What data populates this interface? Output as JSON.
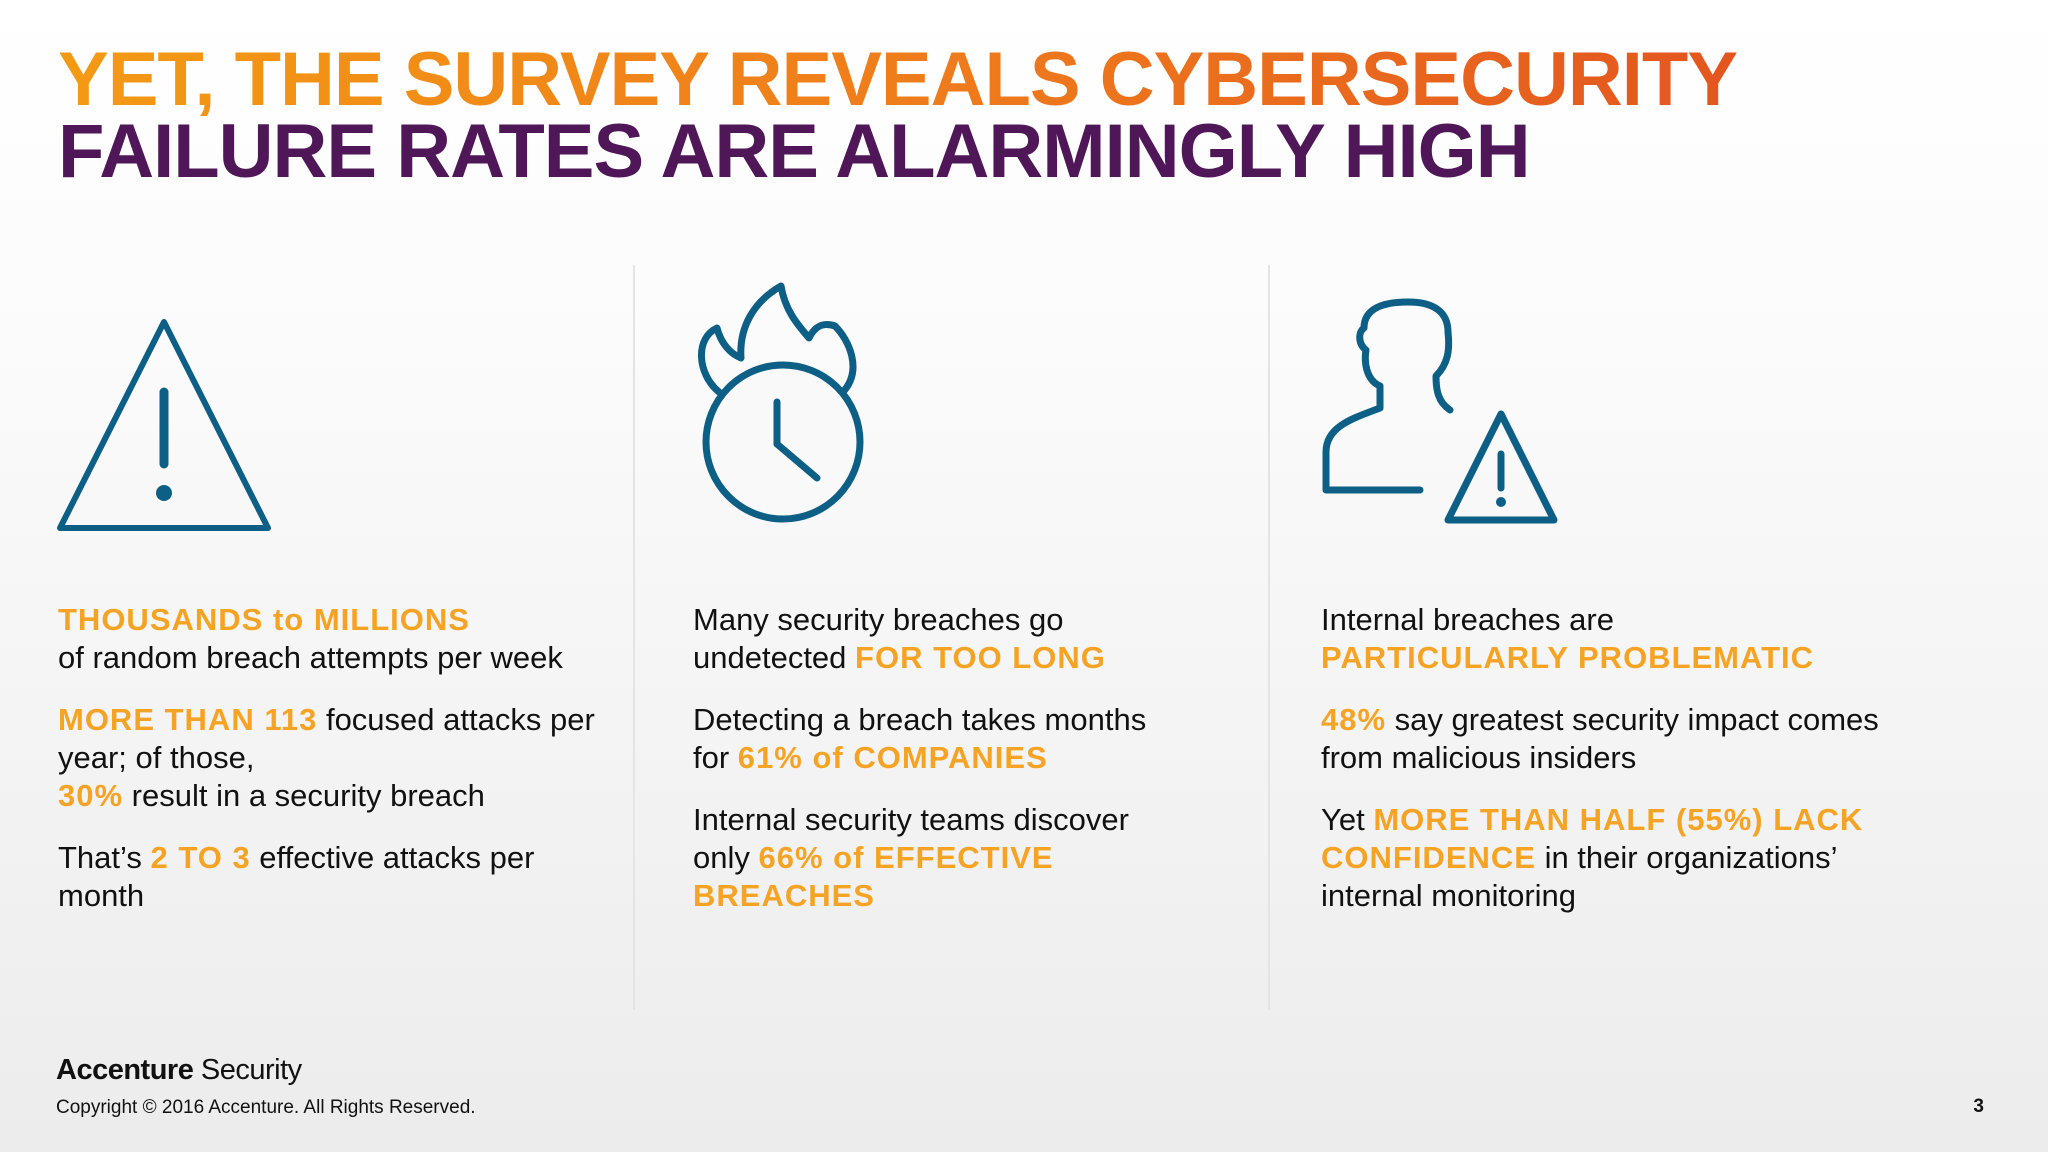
{
  "title": {
    "line1": "YET, THE SURVEY REVEALS CYBERSECURITY",
    "line2": "FAILURE RATES ARE ALARMINGLY HIGH"
  },
  "colors": {
    "accent": "#f5a324",
    "title_orange": "#ee7a1c",
    "title_purple": "#4f1758",
    "icon": "#0e5f85"
  },
  "columns": [
    {
      "icon": "warning-triangle-icon",
      "items": [
        {
          "h1": "THOUSANDS to MILLIONS",
          "t1": "of random breach attempts per week"
        },
        {
          "h1": "MORE THAN 113",
          "t1": " focused attacks per year; of those, ",
          "h2": "30%",
          "t2": " result in a security breach"
        },
        {
          "t0": "That’s ",
          "h1": "2 TO 3",
          "t1": " effective attacks per month"
        }
      ]
    },
    {
      "icon": "burning-clock-icon",
      "items": [
        {
          "t0": "Many security breaches go undetected ",
          "h1": "FOR TOO LONG"
        },
        {
          "t0": "Detecting a breach takes months for ",
          "h1": "61% of COMPANIES"
        },
        {
          "t0": "Internal security teams discover only ",
          "h1": "66% of EFFECTIVE BREACHES"
        }
      ]
    },
    {
      "icon": "insider-threat-icon",
      "items": [
        {
          "t0": "Internal breaches are ",
          "h1": "PARTICULARLY PROBLEMATIC"
        },
        {
          "h1": "48%",
          "t1": " say greatest security impact comes from malicious insiders"
        },
        {
          "t0": "Yet ",
          "h1": "MORE THAN HALF (55%) LACK CONFIDENCE",
          "t1": " in their organizations’ internal monitoring"
        }
      ]
    }
  ],
  "footer": {
    "brand_bold": "Accenture",
    "brand_light": " Security",
    "copyright": "Copyright © 2016 Accenture. All Rights Reserved.",
    "page_number": "3"
  }
}
